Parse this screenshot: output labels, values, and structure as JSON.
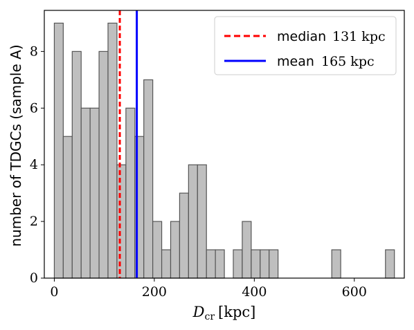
{
  "chart_data": {
    "type": "bar",
    "subtype": "histogram",
    "bin_width": 17.9,
    "bin_start": 0,
    "bin_counts": [
      9,
      5,
      8,
      6,
      6,
      8,
      9,
      4,
      6,
      5,
      7,
      2,
      1,
      2,
      3,
      4,
      4,
      1,
      1,
      0,
      1,
      2,
      1,
      1,
      1,
      0,
      0,
      0,
      0,
      0,
      0,
      1,
      0,
      0,
      0,
      0,
      0,
      1
    ],
    "xlabel_main": "D",
    "xlabel_sub": "cr",
    "xlabel_unit": "[kpc]",
    "ylabel": "number of TDGCs (sample A)",
    "xlim": [
      -20,
      700
    ],
    "ylim": [
      0,
      9.45
    ],
    "xticks": [
      "0",
      "200",
      "400",
      "600"
    ],
    "xtick_values": [
      0,
      200,
      400,
      600
    ],
    "yticks": [
      "0",
      "2",
      "4",
      "6",
      "8"
    ],
    "ytick_values": [
      0,
      2,
      4,
      6,
      8
    ],
    "grid": false,
    "legend_position": "top-right",
    "vlines": [
      {
        "value": 131,
        "color": "#ff0000",
        "style": "dashed",
        "label": "median",
        "label_value": "131 kpc"
      },
      {
        "value": 165,
        "color": "#0000ff",
        "style": "solid",
        "label": "mean",
        "label_value": "165 kpc"
      }
    ],
    "bar_fill": "#bfbfbf",
    "bar_edge": "#555555"
  }
}
